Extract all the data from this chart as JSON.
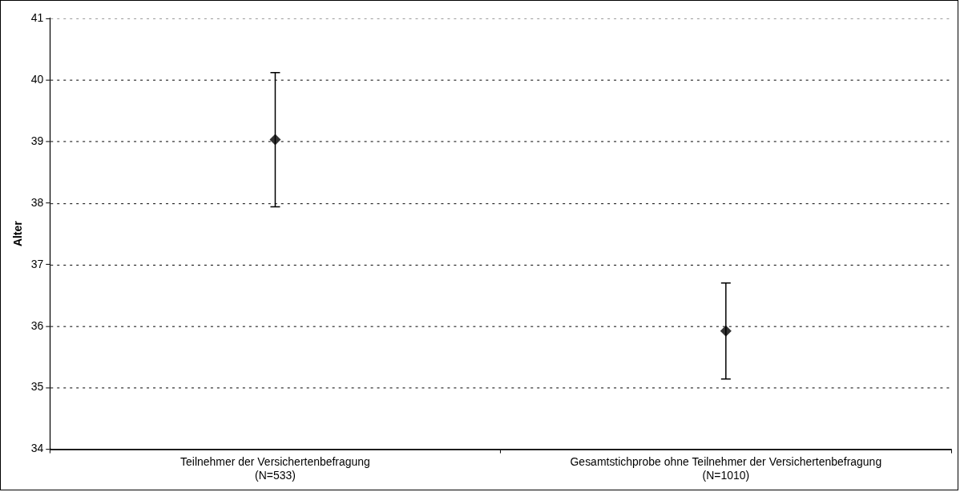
{
  "chart_data": {
    "type": "scatter",
    "ylabel": "Alter",
    "categories": [
      "Teilnehmer der Versichertenbefragung\n(N=533)",
      "Gesamtstichprobe ohne Teilnehmer der Versichertenbefragung\n(N=1010)"
    ],
    "series": [
      {
        "color": "#333333",
        "values": [
          39.03,
          35.92
        ],
        "errors": [
          1.09,
          0.78
        ]
      }
    ],
    "ylim": [
      34,
      41
    ],
    "yticks": [
      34,
      35,
      36,
      37,
      38,
      39,
      40,
      41
    ],
    "grid": "y",
    "marker": "diamond",
    "legend": false
  }
}
